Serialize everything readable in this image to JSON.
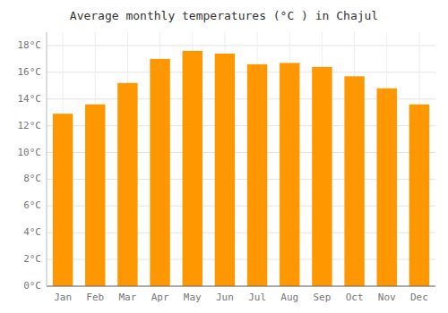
{
  "chart_data": {
    "type": "bar",
    "title": "Average monthly temperatures (°C ) in Chajul",
    "categories": [
      "Jan",
      "Feb",
      "Mar",
      "Apr",
      "May",
      "Jun",
      "Jul",
      "Aug",
      "Sep",
      "Oct",
      "Nov",
      "Dec"
    ],
    "values": [
      12.9,
      13.6,
      15.2,
      17.0,
      17.6,
      17.4,
      16.6,
      16.7,
      16.4,
      15.7,
      14.8,
      13.6
    ],
    "color": "#FF9800",
    "ylim": [
      0,
      19
    ],
    "yticks": [
      {
        "value": 0,
        "label": "0°C"
      },
      {
        "value": 2,
        "label": "2°C"
      },
      {
        "value": 4,
        "label": "4°C"
      },
      {
        "value": 6,
        "label": "6°C"
      },
      {
        "value": 8,
        "label": "8°C"
      },
      {
        "value": 10,
        "label": "10°C"
      },
      {
        "value": 12,
        "label": "12°C"
      },
      {
        "value": 14,
        "label": "14°C"
      },
      {
        "value": 16,
        "label": "16°C"
      },
      {
        "value": 18,
        "label": "18°C"
      }
    ],
    "grid": true
  }
}
